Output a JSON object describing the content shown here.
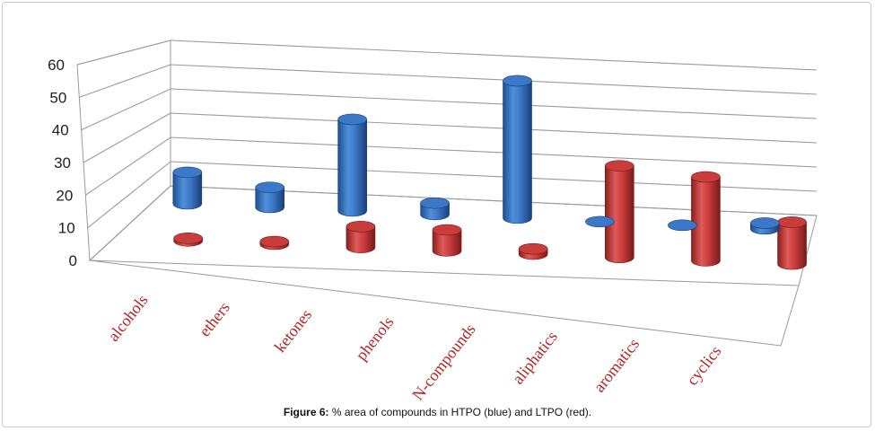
{
  "caption": {
    "label": "Figure 6:",
    "text": "% area of compounds in HTPO (blue) and LTPO (red)."
  },
  "colors": {
    "HTPO": "#3c78c8",
    "LTPO": "#c83c3c"
  },
  "chart_data": {
    "type": "bar",
    "title": "",
    "xlabel": "",
    "ylabel": "",
    "ylim": [
      0,
      60
    ],
    "yticks": [
      0,
      10,
      20,
      30,
      40,
      50,
      60
    ],
    "grid": true,
    "categories": [
      "alcohols",
      "ethers",
      "ketones",
      "phenols",
      "N-compounds",
      "aliphatics",
      "aromatics",
      "cyclics"
    ],
    "series": [
      {
        "name": "HTPO",
        "values": [
          11,
          7,
          32,
          4,
          48,
          0,
          0,
          2
        ]
      },
      {
        "name": "LTPO",
        "values": [
          1,
          1,
          8,
          8,
          2,
          35,
          32,
          16
        ]
      }
    ]
  }
}
